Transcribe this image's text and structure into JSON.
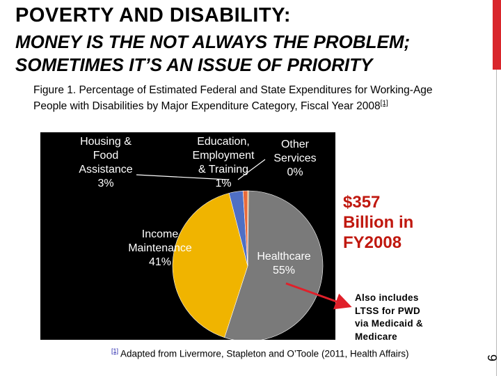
{
  "slide": {
    "title_line1": "POVERTY AND DISABILITY:",
    "title_line2": "MONEY IS THE NOT ALWAYS THE PROBLEM;",
    "title_line3": "SOMETIMES IT’S AN ISSUE OF PRIORITY",
    "page_number": "6",
    "accent_color": "#d9262c"
  },
  "caption": {
    "text": "Figure 1. Percentage of Estimated Federal and State Expenditures for Working-Age People with Disabilities by Major Expenditure Category, Fiscal Year 2008",
    "ref": "[1]"
  },
  "callouts": {
    "total_line1": "$357",
    "total_line2": "Billion in",
    "total_line3": "FY2008",
    "note_line1": "Also includes",
    "note_line2": "LTSS for PWD",
    "note_line3": "via Medicaid &",
    "note_line4": "Medicare"
  },
  "footnote": {
    "ref": "[1]",
    "text": "Adapted from Livermore, Stapleton and O’Toole (2011, Health Affairs)"
  },
  "chart_data": {
    "type": "pie",
    "categories": [
      "Healthcare",
      "Income Maintenance",
      "Housing & Food Assistance",
      "Education, Employment & Training",
      "Other Services"
    ],
    "values": [
      55,
      41,
      3,
      1,
      0
    ],
    "series": [
      {
        "label_lines": [
          "Healthcare",
          "55%"
        ],
        "value": 55,
        "color": "#7a7a7a"
      },
      {
        "label_lines": [
          "Income",
          "Maintenance",
          "41%"
        ],
        "value": 41,
        "color": "#f0b400"
      },
      {
        "label_lines": [
          "Housing &",
          "Food",
          "Assistance",
          "3%"
        ],
        "value": 3,
        "color": "#4f6fc4"
      },
      {
        "label_lines": [
          "Education,",
          "Employment",
          "& Training",
          "1%"
        ],
        "value": 1,
        "color": "#e86a3a"
      },
      {
        "label_lines": [
          "Other",
          "Services",
          "0%"
        ],
        "value": 0,
        "color": "#e0a030"
      }
    ],
    "background": "#000000"
  }
}
